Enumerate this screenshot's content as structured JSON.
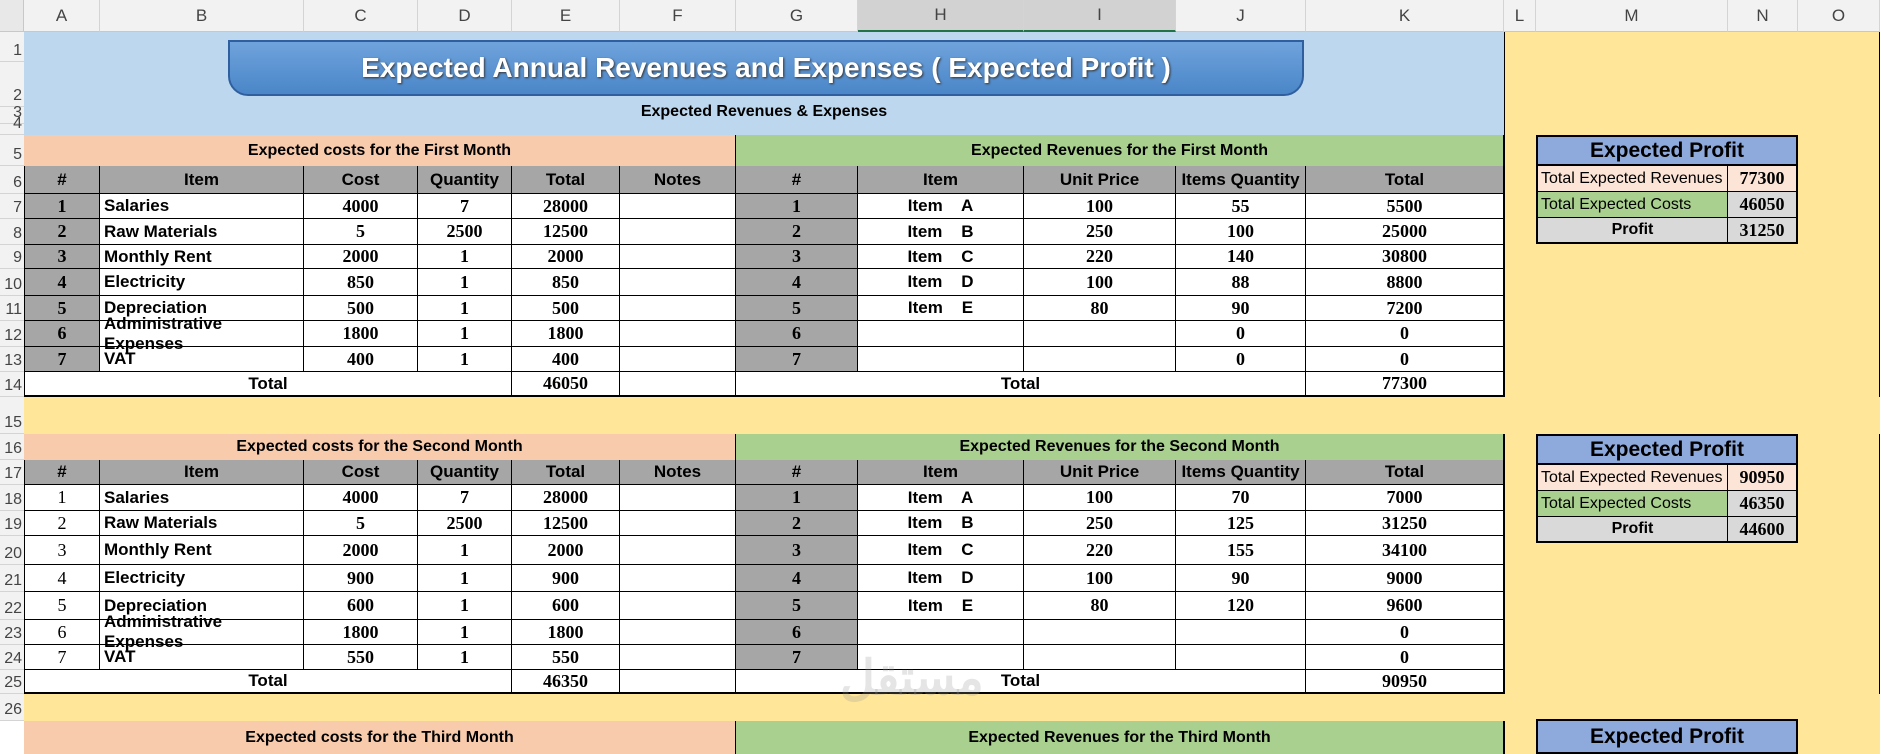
{
  "columns": [
    "A",
    "B",
    "C",
    "D",
    "E",
    "F",
    "G",
    "H",
    "I",
    "J",
    "K",
    "L",
    "M",
    "N",
    "O"
  ],
  "rows": [
    "1",
    "2",
    "3",
    "4",
    "5",
    "6",
    "7",
    "8",
    "9",
    "10",
    "11",
    "12",
    "13",
    "14",
    "15",
    "16",
    "17",
    "18",
    "19",
    "20",
    "21",
    "22",
    "23",
    "24",
    "25",
    "26"
  ],
  "title": "Expected Annual Revenues and Expenses  ( Expected Profit )",
  "subtitle": "Expected Revenues & Expenses",
  "cost_headers": [
    "#",
    "Item",
    "Cost",
    "Quantity",
    "Total",
    "Notes"
  ],
  "revenue_headers": [
    "#",
    "Item",
    "Unit Price",
    "Items Quantity",
    "Total"
  ],
  "total_label": "Total",
  "profit": {
    "title": "Expected Profit",
    "rev_label": "Total Expected Revenues",
    "cost_label": "Total Expected Costs",
    "profit_label": "Profit"
  },
  "month1": {
    "cost_title": "Expected costs for the First Month",
    "rev_title": "Expected Revenues for the First Month",
    "costs": [
      {
        "n": "1",
        "item": "Salaries",
        "cost": "4000",
        "qty": "7",
        "total": "28000"
      },
      {
        "n": "2",
        "item": "Raw Materials",
        "cost": "5",
        "qty": "2500",
        "total": "12500"
      },
      {
        "n": "3",
        "item": "Monthly Rent",
        "cost": "2000",
        "qty": "1",
        "total": "2000"
      },
      {
        "n": "4",
        "item": "Electricity",
        "cost": "850",
        "qty": "1",
        "total": "850"
      },
      {
        "n": "5",
        "item": "Depreciation",
        "cost": "500",
        "qty": "1",
        "total": "500"
      },
      {
        "n": "6",
        "item": "Administrative Expenses",
        "cost": "1800",
        "qty": "1",
        "total": "1800"
      },
      {
        "n": "7",
        "item": "VAT",
        "cost": "400",
        "qty": "1",
        "total": "400"
      }
    ],
    "cost_total": "46050",
    "revenues": [
      {
        "n": "1",
        "item": "Item    A",
        "price": "100",
        "qty": "55",
        "total": "5500"
      },
      {
        "n": "2",
        "item": "Item    B",
        "price": "250",
        "qty": "100",
        "total": "25000"
      },
      {
        "n": "3",
        "item": "Item    C",
        "price": "220",
        "qty": "140",
        "total": "30800"
      },
      {
        "n": "4",
        "item": "Item    D",
        "price": "100",
        "qty": "88",
        "total": "8800"
      },
      {
        "n": "5",
        "item": "Item    E",
        "price": "80",
        "qty": "90",
        "total": "7200"
      },
      {
        "n": "6",
        "item": "",
        "price": "",
        "qty": "0",
        "total": "0"
      },
      {
        "n": "7",
        "item": "",
        "price": "",
        "qty": "0",
        "total": "0"
      }
    ],
    "rev_total": "77300",
    "profit_rev": "77300",
    "profit_cost": "46050",
    "profit_value": "31250"
  },
  "month2": {
    "cost_title": "Expected costs for the Second Month",
    "rev_title": "Expected Revenues for the Second Month",
    "costs": [
      {
        "n": "1",
        "item": "Salaries",
        "cost": "4000",
        "qty": "7",
        "total": "28000"
      },
      {
        "n": "2",
        "item": "Raw Materials",
        "cost": "5",
        "qty": "2500",
        "total": "12500"
      },
      {
        "n": "3",
        "item": "Monthly Rent",
        "cost": "2000",
        "qty": "1",
        "total": "2000"
      },
      {
        "n": "4",
        "item": "Electricity",
        "cost": "900",
        "qty": "1",
        "total": "900"
      },
      {
        "n": "5",
        "item": "Depreciation",
        "cost": "600",
        "qty": "1",
        "total": "600"
      },
      {
        "n": "6",
        "item": "Administrative Expenses",
        "cost": "1800",
        "qty": "1",
        "total": "1800"
      },
      {
        "n": "7",
        "item": "VAT",
        "cost": "550",
        "qty": "1",
        "total": "550"
      }
    ],
    "cost_total": "46350",
    "revenues": [
      {
        "n": "1",
        "item": "Item    A",
        "price": "100",
        "qty": "70",
        "total": "7000"
      },
      {
        "n": "2",
        "item": "Item    B",
        "price": "250",
        "qty": "125",
        "total": "31250"
      },
      {
        "n": "3",
        "item": "Item    C",
        "price": "220",
        "qty": "155",
        "total": "34100"
      },
      {
        "n": "4",
        "item": "Item    D",
        "price": "100",
        "qty": "90",
        "total": "9000"
      },
      {
        "n": "5",
        "item": "Item    E",
        "price": "80",
        "qty": "120",
        "total": "9600"
      },
      {
        "n": "6",
        "item": "",
        "price": "",
        "qty": "",
        "total": "0"
      },
      {
        "n": "7",
        "item": "",
        "price": "",
        "qty": "",
        "total": "0"
      }
    ],
    "rev_total": "90950",
    "profit_rev": "90950",
    "profit_cost": "46350",
    "profit_value": "44600"
  },
  "month3": {
    "cost_title": "Expected costs for the Third Month",
    "rev_title": "Expected Revenues for the Third Month"
  },
  "colors": {
    "title_bg": "#bdd7ee",
    "cost_band": "#f8cbad",
    "rev_band": "#a9d08e",
    "side_panel": "#ffe699",
    "header_gray": "#a6a6a6",
    "profit_title": "#8ea9db"
  }
}
